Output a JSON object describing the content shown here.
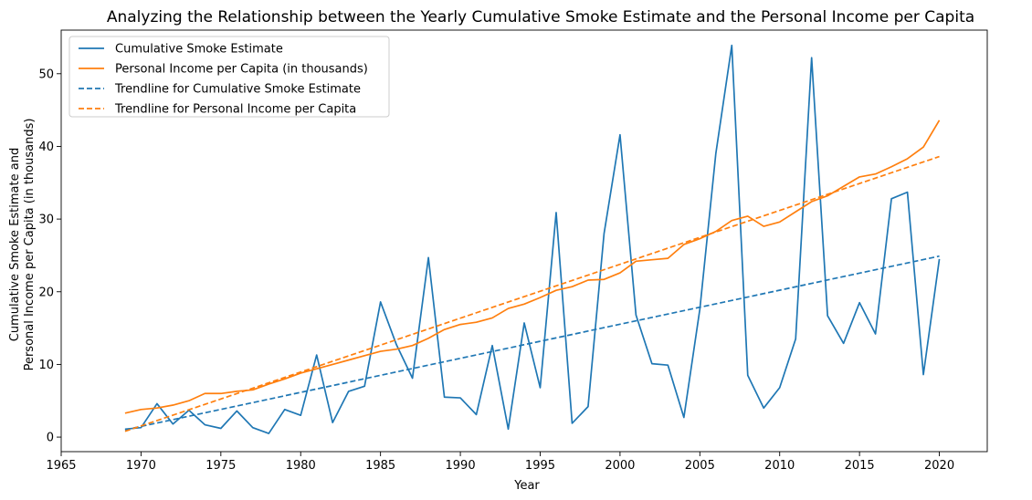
{
  "chart_data": {
    "type": "line",
    "title": "Analyzing the Relationship between the Yearly Cumulative Smoke Estimate and the Personal Income per Capita",
    "xlabel": "Year",
    "ylabel_line1": "Cumulative Smoke Estimate and",
    "ylabel_line2": "Personal Income per Capita (in thousands)",
    "xlim": [
      1965,
      2023
    ],
    "ylim": [
      -2,
      56
    ],
    "xticks": [
      1965,
      1970,
      1975,
      1980,
      1985,
      1990,
      1995,
      2000,
      2005,
      2010,
      2015,
      2020
    ],
    "yticks": [
      0,
      10,
      20,
      30,
      40,
      50
    ],
    "grid": false,
    "legend_position": "top-left",
    "x": [
      1969,
      1970,
      1971,
      1972,
      1973,
      1974,
      1975,
      1976,
      1977,
      1978,
      1979,
      1980,
      1981,
      1982,
      1983,
      1984,
      1985,
      1986,
      1987,
      1988,
      1989,
      1990,
      1991,
      1992,
      1993,
      1994,
      1995,
      1996,
      1997,
      1998,
      1999,
      2000,
      2001,
      2002,
      2003,
      2004,
      2005,
      2006,
      2007,
      2008,
      2009,
      2010,
      2011,
      2012,
      2013,
      2014,
      2015,
      2016,
      2017,
      2018,
      2019,
      2020
    ],
    "series": [
      {
        "name": "Cumulative Smoke Estimate",
        "color": "#1f77b4",
        "style": "solid",
        "values": [
          1.1,
          1.3,
          4.6,
          1.8,
          3.7,
          1.7,
          1.2,
          3.6,
          1.3,
          0.5,
          3.8,
          3.0,
          11.3,
          2.0,
          6.3,
          7.0,
          18.6,
          12.7,
          8.1,
          24.7,
          5.5,
          5.4,
          3.1,
          12.6,
          1.1,
          15.7,
          6.8,
          30.9,
          1.9,
          4.2,
          28.0,
          41.6,
          16.8,
          10.1,
          9.9,
          2.7,
          17.6,
          39.0,
          53.9,
          8.5,
          4.0,
          6.8,
          13.5,
          52.2,
          16.7,
          12.9,
          18.5,
          14.2,
          32.8,
          33.7,
          8.6,
          24.5
        ]
      },
      {
        "name": "Personal Income per Capita (in thousands)",
        "color": "#ff7f0e",
        "style": "solid",
        "values": [
          3.3,
          3.8,
          4.0,
          4.4,
          5.0,
          6.0,
          6.0,
          6.3,
          6.5,
          7.3,
          8.0,
          8.8,
          9.4,
          10.0,
          10.6,
          11.2,
          11.8,
          12.1,
          12.6,
          13.6,
          14.8,
          15.5,
          15.8,
          16.4,
          17.7,
          18.3,
          19.2,
          20.2,
          20.7,
          21.6,
          21.7,
          22.6,
          24.2,
          24.4,
          24.6,
          26.5,
          27.3,
          28.3,
          29.8,
          30.4,
          29.0,
          29.6,
          31.0,
          32.4,
          33.2,
          34.5,
          35.8,
          36.2,
          37.2,
          38.3,
          39.9,
          43.6
        ]
      },
      {
        "name": "Trendline for Cumulative Smoke Estimate",
        "color": "#1f77b4",
        "style": "dashed",
        "trend_start": [
          1969,
          1.0
        ],
        "trend_end": [
          2020,
          24.9
        ]
      },
      {
        "name": "Trendline for Personal Income per Capita",
        "color": "#ff7f0e",
        "style": "dashed",
        "trend_start": [
          1969,
          0.8
        ],
        "trend_end": [
          2020,
          38.6
        ]
      }
    ]
  }
}
